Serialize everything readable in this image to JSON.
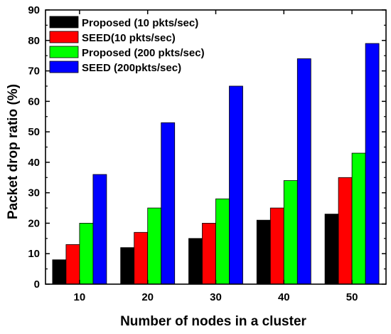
{
  "chart_data": {
    "type": "bar",
    "title": "",
    "xlabel": "Number of nodes in a cluster",
    "ylabel": "Packet drop ratio (%)",
    "ylim": [
      0,
      90
    ],
    "yticks": [
      0,
      10,
      20,
      30,
      40,
      50,
      60,
      70,
      80,
      90
    ],
    "categories": [
      "10",
      "20",
      "30",
      "40",
      "50"
    ],
    "grid": false,
    "legend_position": "top-left",
    "series": [
      {
        "name": "Proposed (10 pkts/sec)",
        "color": "#000000",
        "values": [
          8,
          12,
          15,
          21,
          23
        ]
      },
      {
        "name": "SEED(10 pkts/sec)",
        "color": "#ff0000",
        "values": [
          13,
          17,
          20,
          25,
          35
        ]
      },
      {
        "name": "Proposed (200 pkts/sec)",
        "color": "#00ff00",
        "values": [
          20,
          25,
          28,
          34,
          43
        ]
      },
      {
        "name": "SEED (200pkts/sec)",
        "color": "#0000ff",
        "values": [
          36,
          53,
          65,
          74,
          79
        ]
      }
    ]
  }
}
